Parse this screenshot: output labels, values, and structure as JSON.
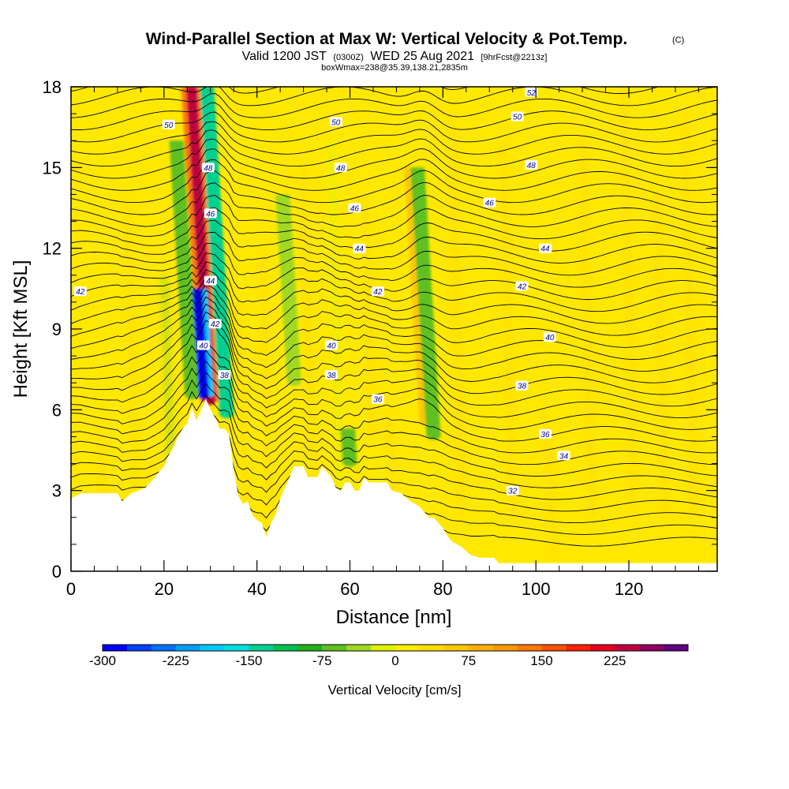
{
  "title": {
    "main": "Wind-Parallel Section at Max W: Vertical Velocity & Pot.Temp.",
    "copyright": "(C)",
    "valid_prefix": "Valid 1200 JST",
    "valid_utc": "(0300Z)",
    "valid_date": "WED 25 Aug 2021",
    "forecast": "[9hrFcst@2213z]",
    "box": "boxWmax=238@35.39,138.21,2835m"
  },
  "chart_data": {
    "type": "heatmap",
    "xlabel": "Distance [nm]",
    "ylabel": "Height [Kft MSL]",
    "xlim": [
      0,
      139
    ],
    "ylim": [
      0,
      18
    ],
    "x_ticks": [
      "0",
      "20",
      "40",
      "60",
      "80",
      "100",
      "120"
    ],
    "y_ticks": [
      "0",
      "3",
      "6",
      "9",
      "12",
      "15",
      "18"
    ],
    "colorbar": {
      "title": "Vertical Velocity [cm/s]",
      "tick_labels": [
        "-300",
        "-225",
        "-150",
        "-75",
        "0",
        "75",
        "150",
        "225"
      ],
      "colors": [
        "#0000ff",
        "#0040ff",
        "#0070ff",
        "#00a0ff",
        "#00c8ff",
        "#00e0e0",
        "#00d090",
        "#00c050",
        "#20b020",
        "#60c020",
        "#a0d820",
        "#e0f000",
        "#ffee00",
        "#ffdd00",
        "#ffc800",
        "#ffb000",
        "#ff9800",
        "#ff7800",
        "#ff5000",
        "#ff2000",
        "#e80020",
        "#c00040",
        "#900060",
        "#600080"
      ]
    },
    "background_value_color": "#ffe800",
    "terrain": [
      [
        0,
        2.7
      ],
      [
        2,
        2.9
      ],
      [
        10,
        2.9
      ],
      [
        11,
        2.6
      ],
      [
        13,
        2.9
      ],
      [
        16,
        3.1
      ],
      [
        18,
        3.5
      ],
      [
        20,
        3.9
      ],
      [
        21,
        4.3
      ],
      [
        22,
        4.6
      ],
      [
        23,
        5.0
      ],
      [
        24,
        5.3
      ],
      [
        25,
        5.5
      ],
      [
        26,
        6.1
      ],
      [
        27,
        5.6
      ],
      [
        28,
        6.0
      ],
      [
        29,
        6.4
      ],
      [
        30,
        6.0
      ],
      [
        31,
        5.7
      ],
      [
        32,
        5.3
      ],
      [
        33,
        5.3
      ],
      [
        34,
        5.1
      ],
      [
        35,
        3.8
      ],
      [
        36,
        2.8
      ],
      [
        37,
        2.5
      ],
      [
        38,
        2.6
      ],
      [
        39,
        2.1
      ],
      [
        40,
        1.9
      ],
      [
        41,
        1.8
      ],
      [
        42,
        1.3
      ],
      [
        43,
        1.8
      ],
      [
        44,
        2.1
      ],
      [
        45,
        2.7
      ],
      [
        46,
        3.1
      ],
      [
        47,
        3.5
      ],
      [
        48,
        3.9
      ],
      [
        50,
        3.9
      ],
      [
        51,
        3.5
      ],
      [
        53,
        3.5
      ],
      [
        54,
        3.9
      ],
      [
        56,
        3.5
      ],
      [
        57,
        3.1
      ],
      [
        58,
        3.0
      ],
      [
        59,
        3.3
      ],
      [
        60,
        3.3
      ],
      [
        61,
        3.0
      ],
      [
        62,
        3.0
      ],
      [
        63,
        3.5
      ],
      [
        64,
        3.3
      ],
      [
        66,
        3.3
      ],
      [
        68,
        3.3
      ],
      [
        69,
        3.0
      ],
      [
        71,
        2.9
      ],
      [
        73,
        2.6
      ],
      [
        75,
        2.4
      ],
      [
        76,
        2.2
      ],
      [
        77,
        2.0
      ],
      [
        78,
        2.0
      ],
      [
        79,
        1.8
      ],
      [
        80,
        1.6
      ],
      [
        81,
        1.3
      ],
      [
        82,
        1.1
      ],
      [
        83,
        1.0
      ],
      [
        84,
        0.9
      ],
      [
        86,
        0.6
      ],
      [
        88,
        0.5
      ],
      [
        91,
        0.5
      ],
      [
        92,
        0.3
      ],
      [
        139,
        0.3
      ]
    ],
    "velocity_features": [
      {
        "x": 30,
        "bottom": 6.3,
        "top": 18,
        "value": 238
      },
      {
        "x": 28.5,
        "bottom": 6.5,
        "top": 10.5,
        "value": -280
      },
      {
        "x": 33.5,
        "bottom": 5.8,
        "top": 18,
        "value": -150
      },
      {
        "x": 26,
        "bottom": 6.5,
        "top": 16,
        "value": -60
      },
      {
        "x": 76.5,
        "bottom": 5.5,
        "top": 15,
        "value": 60
      },
      {
        "x": 78,
        "bottom": 5.0,
        "top": 15,
        "value": -60
      },
      {
        "x": 60,
        "bottom": 4.0,
        "top": 5.3,
        "value": -70
      },
      {
        "x": 48,
        "bottom": 7.0,
        "top": 14,
        "value": -50
      }
    ],
    "pot_temp_labels": [
      {
        "value": "52",
        "x": 99,
        "y": 17.8
      },
      {
        "value": "50",
        "x": 21,
        "y": 16.6
      },
      {
        "value": "50",
        "x": 57,
        "y": 16.7
      },
      {
        "value": "50",
        "x": 96,
        "y": 16.9
      },
      {
        "value": "48",
        "x": 29.5,
        "y": 15.0
      },
      {
        "value": "48",
        "x": 58,
        "y": 15.0
      },
      {
        "value": "48",
        "x": 99,
        "y": 15.1
      },
      {
        "value": "46",
        "x": 30,
        "y": 13.3
      },
      {
        "value": "46",
        "x": 61,
        "y": 13.5
      },
      {
        "value": "46",
        "x": 90,
        "y": 13.7
      },
      {
        "value": "44",
        "x": 30,
        "y": 10.8
      },
      {
        "value": "44",
        "x": 62,
        "y": 12.0
      },
      {
        "value": "44",
        "x": 102,
        "y": 12.0
      },
      {
        "value": "42",
        "x": 2,
        "y": 10.4
      },
      {
        "value": "42",
        "x": 31,
        "y": 9.2
      },
      {
        "value": "42",
        "x": 66,
        "y": 10.4
      },
      {
        "value": "42",
        "x": 97,
        "y": 10.6
      },
      {
        "value": "40",
        "x": 28.5,
        "y": 8.4
      },
      {
        "value": "40",
        "x": 56,
        "y": 8.4
      },
      {
        "value": "40",
        "x": 103,
        "y": 8.7
      },
      {
        "value": "38",
        "x": 33,
        "y": 7.3
      },
      {
        "value": "38",
        "x": 56,
        "y": 7.3
      },
      {
        "value": "38",
        "x": 97,
        "y": 6.9
      },
      {
        "value": "36",
        "x": 66,
        "y": 6.4
      },
      {
        "value": "36",
        "x": 102,
        "y": 5.1
      },
      {
        "value": "34",
        "x": 106,
        "y": 4.3
      },
      {
        "value": "32",
        "x": 95,
        "y": 3.0
      }
    ]
  }
}
